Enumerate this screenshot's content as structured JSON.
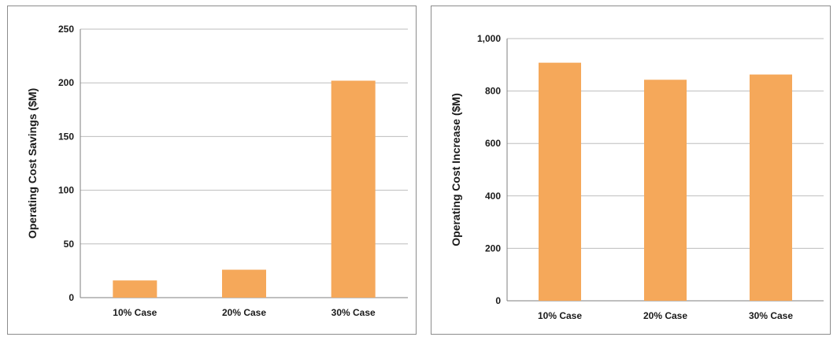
{
  "chart_data": [
    {
      "type": "bar",
      "categories": [
        "10% Case",
        "20% Case",
        "30% Case"
      ],
      "values": [
        16,
        26,
        202
      ],
      "ylabel": "Operating Cost Savings ($M)",
      "xlabel": "",
      "ylim": [
        0,
        250
      ],
      "yticks": [
        "0",
        "50",
        "100",
        "150",
        "200",
        "250"
      ],
      "grid": true,
      "bar_color": "#f5a85a"
    },
    {
      "type": "bar",
      "categories": [
        "10% Case",
        "20% Case",
        "30% Case"
      ],
      "values": [
        908,
        843,
        863
      ],
      "ylabel": "Operating Cost Increase ($M)",
      "xlabel": "",
      "ylim": [
        0,
        1000
      ],
      "yticks": [
        "0",
        "200",
        "400",
        "600",
        "800",
        "1,000"
      ],
      "grid": true,
      "bar_color": "#f5a85a"
    }
  ]
}
